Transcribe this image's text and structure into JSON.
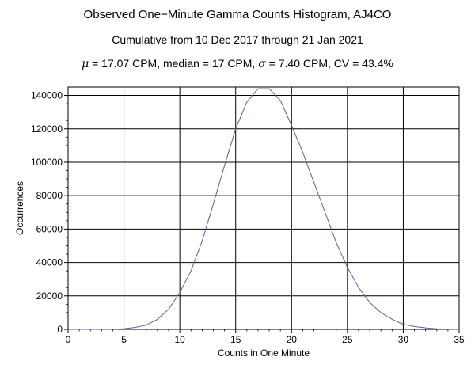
{
  "chart_data": {
    "type": "line",
    "title": "Observed One−Minute Gamma Counts Histogram, AJ4CO",
    "subtitle": "Cumulative from 10 Dec 2017 through 21 Jan 2021",
    "stats": {
      "mu_symbol": "μ",
      "mean_text": " = 17.07 CPM,   median = 17 CPM,   ",
      "sigma_symbol": "σ",
      "rest_text": " = 7.40 CPM,   CV = 43.4%"
    },
    "xlabel": "Counts in One Minute",
    "ylabel": "Occurrences",
    "xlim": [
      0,
      35
    ],
    "ylim": [
      0,
      145000
    ],
    "x_ticks": [
      0,
      5,
      10,
      15,
      20,
      25,
      30,
      35
    ],
    "y_ticks": [
      0,
      20000,
      40000,
      60000,
      80000,
      100000,
      120000,
      140000
    ],
    "grid": true,
    "line_color": "#5b5ba8",
    "series": [
      {
        "x": [
          0,
          1,
          2,
          3,
          4,
          5,
          6,
          7,
          8,
          9,
          10,
          11,
          12,
          13,
          14,
          15,
          16,
          17,
          18,
          19,
          20,
          21,
          22,
          23,
          24,
          25,
          26,
          27,
          28,
          29,
          30,
          31,
          32,
          33,
          34,
          35
        ],
        "y": [
          0,
          0,
          0,
          0,
          100,
          400,
          1200,
          2500,
          6000,
          12000,
          22000,
          35000,
          53000,
          75000,
          98000,
          120000,
          136000,
          144000,
          144000,
          137000,
          122000,
          106000,
          88000,
          70000,
          52000,
          37000,
          25000,
          16000,
          10000,
          6000,
          3000,
          1700,
          900,
          400,
          150,
          50
        ]
      }
    ]
  }
}
